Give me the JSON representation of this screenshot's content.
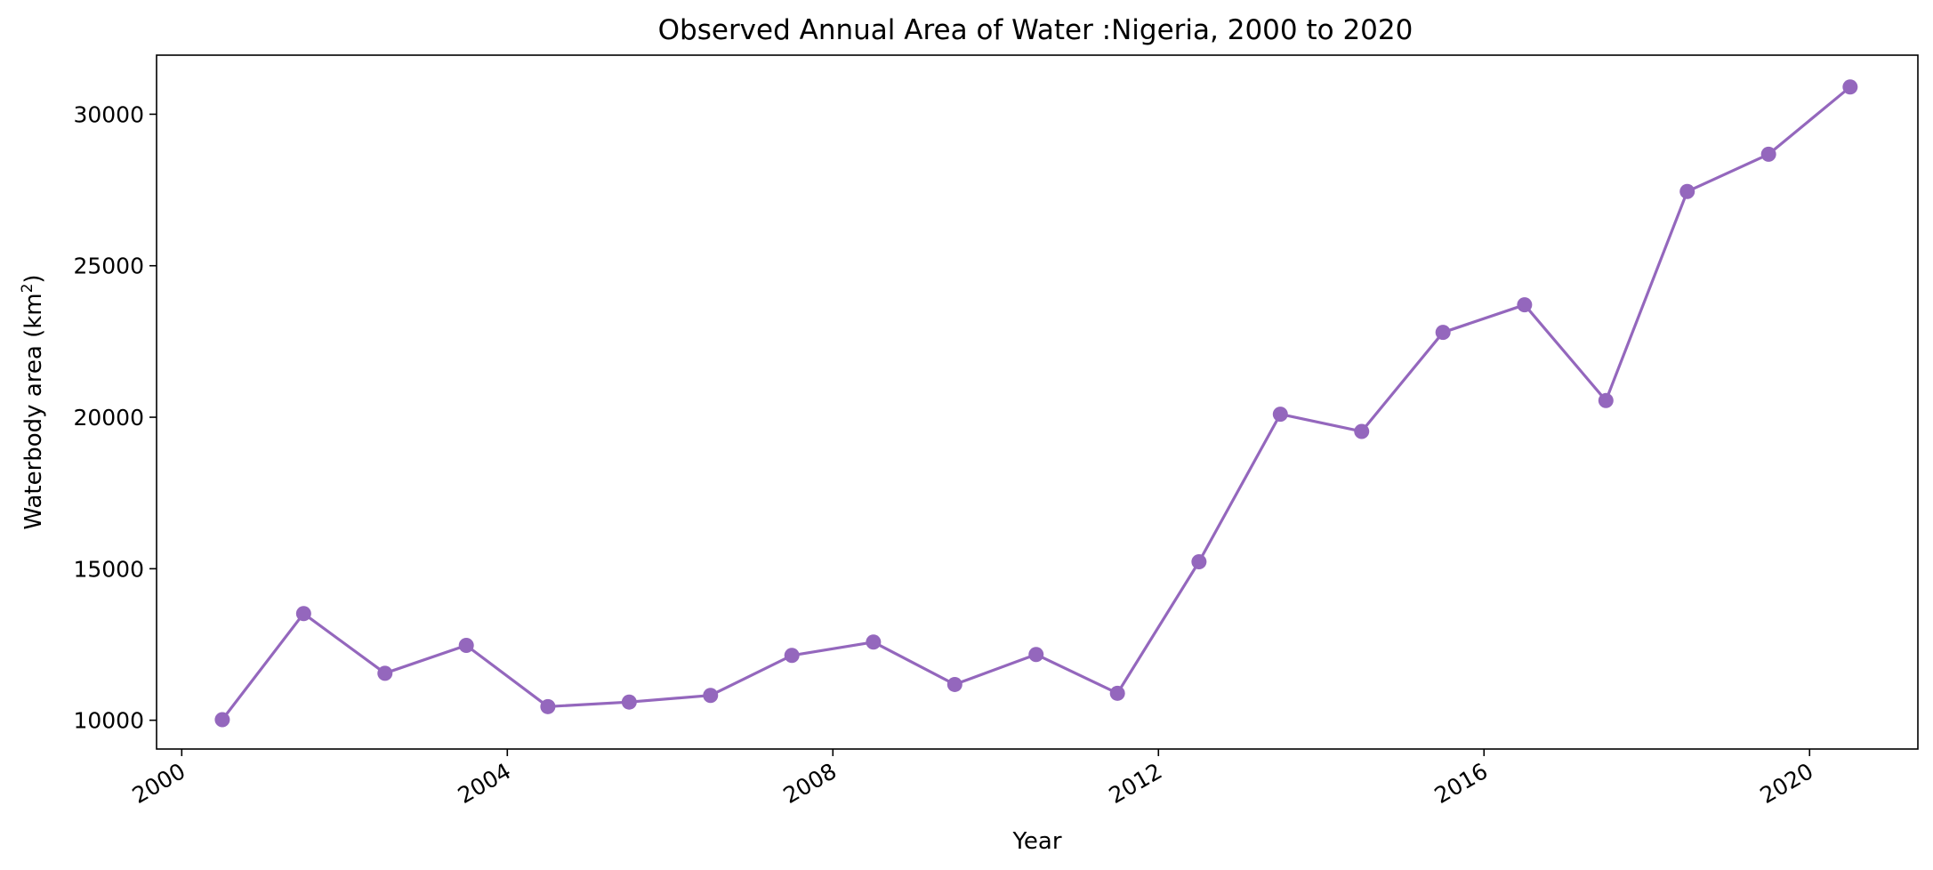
{
  "chart_data": {
    "type": "line",
    "title": "Observed Annual Area of Water :Nigeria, 2000 to 2020",
    "xlabel": "Year",
    "ylabel": {
      "main": "Waterbody area (km",
      "sup": "2",
      "end": ")"
    },
    "x_ticks": [
      "2000",
      "2004",
      "2008",
      "2012",
      "2016",
      "2020"
    ],
    "y_ticks": [
      "10000",
      "15000",
      "20000",
      "25000",
      "30000"
    ],
    "ylim": [
      9050,
      31950
    ],
    "xlim": [
      "1999-09-10",
      "2021-05-01"
    ],
    "grid": false,
    "legend": "none",
    "series": [
      {
        "color": "#9467bd",
        "x": [
          "2000-07-01",
          "2001-07-01",
          "2002-07-01",
          "2003-07-01",
          "2004-07-01",
          "2005-07-01",
          "2006-07-01",
          "2007-07-01",
          "2008-07-01",
          "2009-07-01",
          "2010-07-01",
          "2011-07-01",
          "2012-07-01",
          "2013-07-01",
          "2014-07-01",
          "2015-07-01",
          "2016-07-01",
          "2017-07-01",
          "2018-07-01",
          "2019-07-01",
          "2020-07-01"
        ],
        "values": [
          10020,
          13520,
          11550,
          12470,
          10450,
          10600,
          10820,
          12140,
          12580,
          11180,
          12170,
          10890,
          15230,
          20100,
          19530,
          22800,
          23710,
          20550,
          27450,
          28680,
          30900
        ]
      }
    ]
  }
}
